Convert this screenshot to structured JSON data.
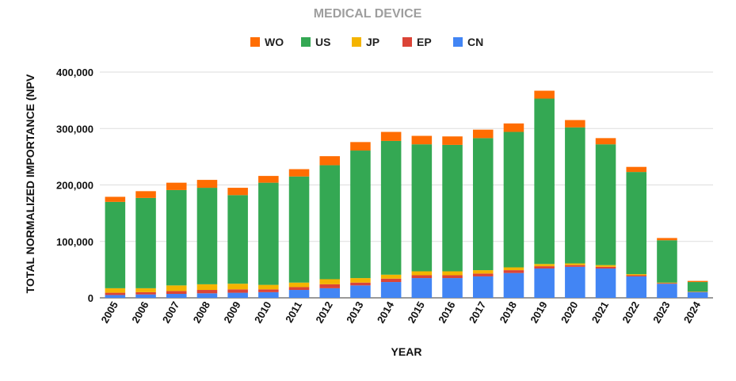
{
  "chart_data": {
    "type": "bar",
    "stacked": true,
    "title": "MEDICAL DEVICE",
    "xlabel": "YEAR",
    "ylabel": "TOTAL NORMALIZED IMPORTANCE (NPV",
    "ylim": [
      0,
      400000
    ],
    "yticks": [
      0,
      100000,
      200000,
      300000,
      400000
    ],
    "ytick_labels": [
      "0",
      "100,000",
      "200,000",
      "300,000",
      "400,000"
    ],
    "grid": true,
    "legend_position": "top",
    "legend_order": [
      "WO",
      "US",
      "JP",
      "EP",
      "CN"
    ],
    "categories": [
      "2005",
      "2006",
      "2007",
      "2008",
      "2009",
      "2010",
      "2011",
      "2012",
      "2013",
      "2014",
      "2015",
      "2016",
      "2017",
      "2018",
      "2019",
      "2020",
      "2021",
      "2022",
      "2023",
      "2024"
    ],
    "series": [
      {
        "name": "CN",
        "color": "#4285f4",
        "values": [
          5000,
          6000,
          7000,
          8000,
          9000,
          10000,
          14000,
          17000,
          22000,
          28000,
          35000,
          35000,
          38000,
          44000,
          52000,
          55000,
          52000,
          38000,
          25000,
          10000
        ]
      },
      {
        "name": "EP",
        "color": "#db4437",
        "values": [
          4000,
          4000,
          5000,
          6000,
          6000,
          5000,
          5000,
          7000,
          5000,
          6000,
          5000,
          5000,
          5000,
          5000,
          4000,
          3000,
          3000,
          2000,
          1000,
          500
        ]
      },
      {
        "name": "JP",
        "color": "#f4b400",
        "values": [
          8000,
          7000,
          10000,
          10000,
          10000,
          8000,
          8000,
          9000,
          8000,
          7000,
          7000,
          7000,
          6000,
          5000,
          4000,
          3000,
          3000,
          2000,
          1000,
          500
        ]
      },
      {
        "name": "US",
        "color": "#34a853",
        "values": [
          153000,
          160000,
          169000,
          171000,
          157000,
          181000,
          188000,
          202000,
          226000,
          237000,
          225000,
          224000,
          234000,
          240000,
          293000,
          241000,
          214000,
          181000,
          75000,
          17000
        ]
      },
      {
        "name": "WO",
        "color": "#ff6d01",
        "values": [
          9000,
          12000,
          13000,
          14000,
          13000,
          12000,
          13000,
          16000,
          15000,
          16000,
          15000,
          15000,
          15000,
          15000,
          14000,
          13000,
          11000,
          9000,
          4000,
          2000
        ]
      }
    ]
  }
}
